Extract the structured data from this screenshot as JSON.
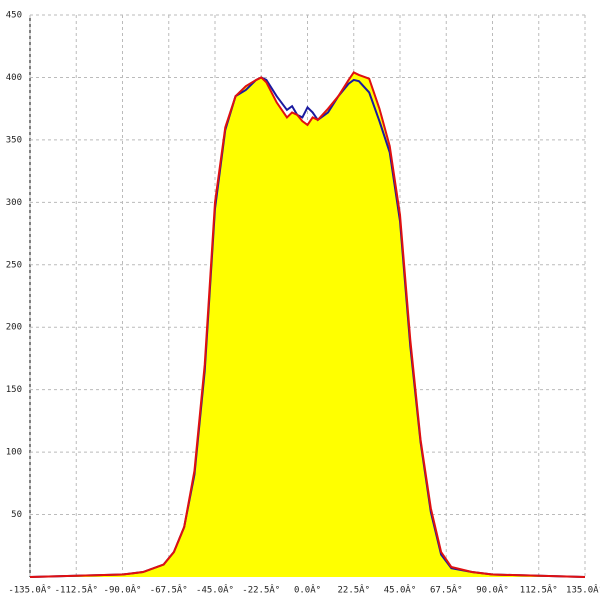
{
  "chart_data": {
    "type": "area",
    "x": [
      -135,
      -90,
      -80,
      -70,
      -65,
      -60,
      -55,
      -50,
      -45,
      -40,
      -35,
      -30,
      -25,
      -22.5,
      -20,
      -15,
      -10,
      -7.5,
      -5,
      -2.5,
      0,
      2.5,
      5,
      10,
      15,
      20,
      22.5,
      25,
      30,
      35,
      40,
      45,
      50,
      55,
      60,
      65,
      70,
      80,
      90,
      135
    ],
    "series": [
      {
        "color": "#1a1aa0",
        "values": [
          0,
          2,
          4,
          10,
          20,
          40,
          82,
          165,
          295,
          358,
          385,
          390,
          398,
          400,
          398,
          385,
          374,
          377,
          370,
          368,
          376,
          372,
          366,
          372,
          385,
          395,
          398,
          397,
          388,
          365,
          340,
          285,
          185,
          108,
          52,
          18,
          7,
          4,
          2,
          0
        ]
      },
      {
        "color": "#e01010",
        "values": [
          0,
          2,
          4,
          10,
          20,
          40,
          85,
          170,
          300,
          360,
          385,
          393,
          398,
          400,
          396,
          380,
          368,
          372,
          370,
          365,
          362,
          368,
          366,
          375,
          385,
          398,
          404,
          402,
          399,
          375,
          345,
          290,
          190,
          110,
          55,
          20,
          8,
          4,
          2,
          0
        ]
      }
    ],
    "fill": "#ffff00",
    "xlim": [
      -135,
      135
    ],
    "ylim": [
      0,
      450
    ],
    "xticks": [
      {
        "value": -135,
        "label": "-135.0Â°"
      },
      {
        "value": -112.5,
        "label": "-112.5Â°"
      },
      {
        "value": -90,
        "label": "-90.0Â°"
      },
      {
        "value": -67.5,
        "label": "-67.5Â°"
      },
      {
        "value": -45,
        "label": "-45.0Â°"
      },
      {
        "value": -22.5,
        "label": "-22.5Â°"
      },
      {
        "value": 0,
        "label": "0.0Â°"
      },
      {
        "value": 22.5,
        "label": "22.5Â°"
      },
      {
        "value": 45,
        "label": "45.0Â°"
      },
      {
        "value": 67.5,
        "label": "67.5Â°"
      },
      {
        "value": 90,
        "label": "90.0Â°"
      },
      {
        "value": 112.5,
        "label": "112.5Â°"
      },
      {
        "value": 135,
        "label": "135.0Â°"
      }
    ],
    "yticks": [
      50,
      100,
      150,
      200,
      250,
      300,
      350,
      400,
      450
    ],
    "grid": true
  }
}
